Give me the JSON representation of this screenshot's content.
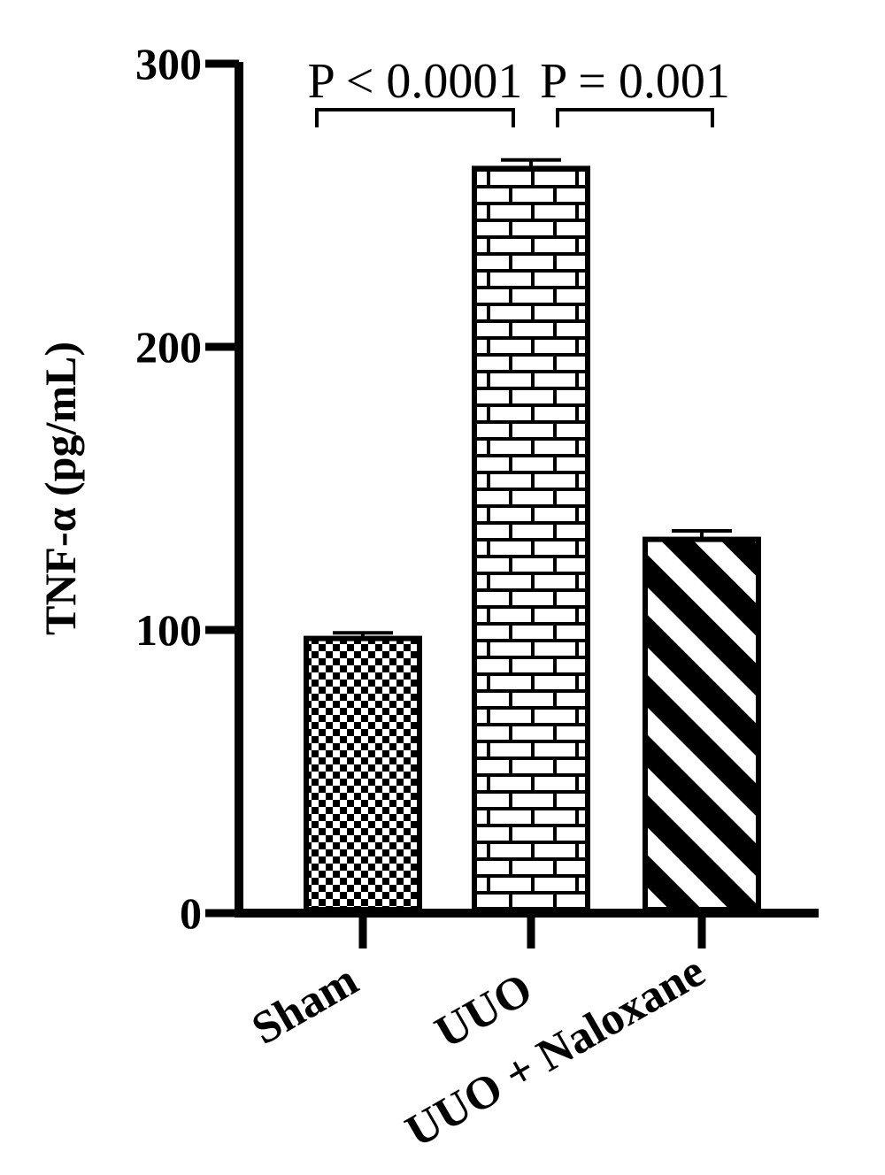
{
  "chart_data": {
    "type": "bar",
    "categories": [
      "Sham",
      "UUO",
      "UUO + Naloxane"
    ],
    "values": [
      97,
      263,
      132
    ],
    "errors": [
      2,
      3,
      3
    ],
    "ylabel": "TNF-α (pg/mL)",
    "xlabel": "",
    "ylim": [
      0,
      300
    ],
    "yticks": [
      "0",
      "100",
      "200",
      "300"
    ],
    "patterns": [
      "checkerboard",
      "brick",
      "diagonal-stripes"
    ],
    "annotations": [
      {
        "text": "P < 0.0001",
        "from": 0,
        "to": 1
      },
      {
        "text": "P = 0.001",
        "from": 1,
        "to": 2
      }
    ],
    "grid": false,
    "legend": "none"
  }
}
